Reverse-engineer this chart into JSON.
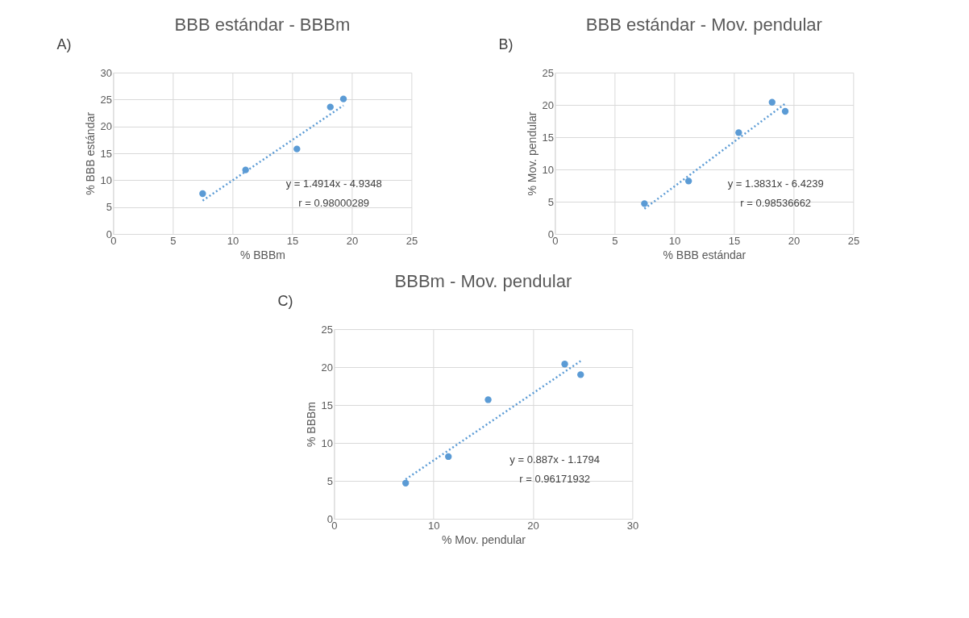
{
  "chart_data": [
    {
      "type": "scatter",
      "title": "BBB estándar - BBBm",
      "xlabel": "% BBBm",
      "ylabel": "% BBB estándar",
      "xlim": [
        0,
        25
      ],
      "xticks": [
        0,
        5,
        10,
        15,
        20,
        25
      ],
      "ylim": [
        0,
        30
      ],
      "yticks": [
        0,
        5,
        10,
        15,
        20,
        25,
        30
      ],
      "grid": true,
      "x": [
        7.5,
        11.1,
        15.4,
        18.2,
        19.3
      ],
      "series": [
        {
          "type": "scatter",
          "marker": "circle",
          "color": "#5b9bd5",
          "values": [
            7.5,
            11.9,
            15.8,
            23.6,
            25.1
          ]
        },
        {
          "type": "line",
          "marker": "none",
          "color": "#5b9bd5",
          "line_style": "dotted",
          "x": [
            7.5,
            19.3
          ],
          "values": [
            6.2,
            23.9
          ]
        }
      ],
      "annotations": [
        "A)",
        "y = 1.4914x - 4.9348",
        "r = 0.98000289"
      ]
    },
    {
      "type": "scatter",
      "title": "BBB estándar - Mov. pendular",
      "xlabel": "% BBB estándar",
      "ylabel": "% Mov. pendular",
      "xlim": [
        0,
        25
      ],
      "xticks": [
        0,
        5,
        10,
        15,
        20,
        25
      ],
      "ylim": [
        0,
        25
      ],
      "yticks": [
        0,
        5,
        10,
        15,
        20,
        25
      ],
      "grid": true,
      "x": [
        7.5,
        11.2,
        15.4,
        18.2,
        19.3
      ],
      "series": [
        {
          "type": "scatter",
          "marker": "circle",
          "color": "#5b9bd5",
          "values": [
            4.7,
            8.2,
            15.7,
            20.4,
            19.0
          ]
        },
        {
          "type": "line",
          "marker": "none",
          "color": "#5b9bd5",
          "line_style": "dotted",
          "x": [
            7.5,
            19.3
          ],
          "values": [
            3.9,
            20.2
          ]
        }
      ],
      "annotations": [
        "B)",
        "y = 1.3831x - 6.4239",
        "r = 0.98536662"
      ]
    },
    {
      "type": "scatter",
      "title": "BBBm - Mov. pendular",
      "xlabel": "% Mov. pendular",
      "ylabel": "% BBBm",
      "xlim": [
        0,
        30
      ],
      "xticks": [
        0,
        10,
        20,
        30
      ],
      "ylim": [
        0,
        25
      ],
      "yticks": [
        0,
        5,
        10,
        15,
        20,
        25
      ],
      "grid": true,
      "x": [
        7.2,
        11.5,
        15.5,
        23.2,
        24.8
      ],
      "series": [
        {
          "type": "scatter",
          "marker": "circle",
          "color": "#5b9bd5",
          "values": [
            4.7,
            8.2,
            15.7,
            20.4,
            19.0
          ]
        },
        {
          "type": "line",
          "marker": "none",
          "color": "#5b9bd5",
          "line_style": "dotted",
          "x": [
            7.2,
            24.8
          ],
          "values": [
            5.2,
            20.8
          ]
        }
      ],
      "annotations": [
        "C)",
        "y = 0.887x - 1.1794",
        "r =  0.96171932"
      ]
    }
  ]
}
